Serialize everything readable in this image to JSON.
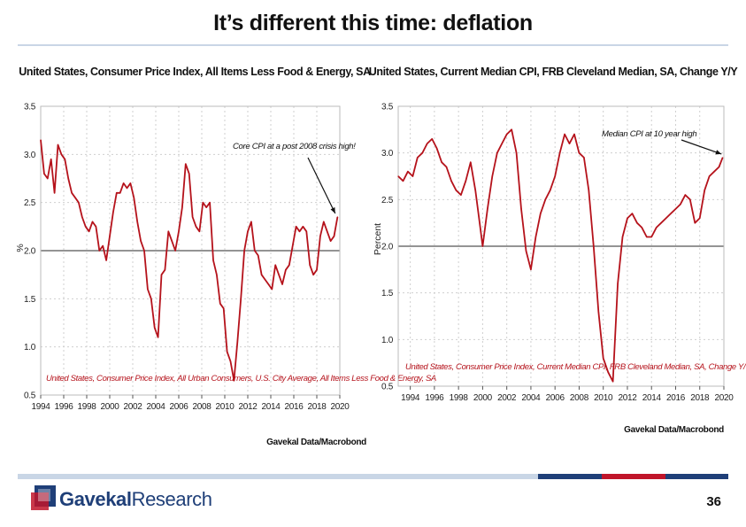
{
  "slide": {
    "title": "It’s different this time: deflation",
    "page_number": "36",
    "logo": {
      "brand_bold": "Gavekal",
      "brand_regular": "Research"
    },
    "colors": {
      "series": "#b5121b",
      "navy": "#1f3f78",
      "footer_red": "#c0152a",
      "footer_blue": "#1f3f78",
      "rule": "#c9d6e6"
    }
  },
  "chart_data": [
    {
      "type": "line",
      "title": "United States, Consumer Price Index, All Items Less Food & Energy, SA",
      "xlabel": "",
      "ylabel": "%",
      "xlim": [
        1994,
        2020
      ],
      "ylim": [
        0.5,
        3.5
      ],
      "xticks": [
        "1994",
        "1996",
        "1998",
        "2000",
        "2002",
        "2004",
        "2006",
        "2008",
        "2010",
        "2012",
        "2014",
        "2016",
        "2018",
        "2020"
      ],
      "yticks": [
        "0.5",
        "1.0",
        "1.5",
        "2.0",
        "2.5",
        "3.0",
        "3.5"
      ],
      "reference_line": 2.0,
      "annotation": {
        "text": "Core CPI at a post 2008 crisis high!",
        "target_x": 2019.6,
        "target_y": 2.35
      },
      "legend": "United States, Consumer Price Index, All Urban Consumers, U.S. City Average, All Items Less Food & Energy, SA",
      "source": "Gavekal Data/Macrobond",
      "series": [
        {
          "name": "United States, Consumer Price Index, All Urban Consumers, U.S. City Average, All Items Less Food & Energy, SA",
          "x": [
            1994.0,
            1994.3,
            1994.6,
            1994.9,
            1995.2,
            1995.5,
            1995.8,
            1996.1,
            1996.4,
            1996.7,
            1997.0,
            1997.3,
            1997.6,
            1997.9,
            1998.2,
            1998.5,
            1998.8,
            1999.1,
            1999.4,
            1999.7,
            2000.0,
            2000.3,
            2000.6,
            2000.9,
            2001.2,
            2001.5,
            2001.8,
            2002.1,
            2002.4,
            2002.7,
            2003.0,
            2003.3,
            2003.6,
            2003.9,
            2004.2,
            2004.5,
            2004.8,
            2005.1,
            2005.4,
            2005.7,
            2006.0,
            2006.3,
            2006.6,
            2006.9,
            2007.2,
            2007.5,
            2007.8,
            2008.1,
            2008.4,
            2008.7,
            2009.0,
            2009.3,
            2009.6,
            2009.9,
            2010.2,
            2010.5,
            2010.8,
            2011.1,
            2011.4,
            2011.7,
            2012.0,
            2012.3,
            2012.6,
            2012.9,
            2013.2,
            2013.5,
            2013.8,
            2014.1,
            2014.4,
            2014.7,
            2015.0,
            2015.3,
            2015.6,
            2015.9,
            2016.2,
            2016.5,
            2016.8,
            2017.1,
            2017.4,
            2017.7,
            2018.0,
            2018.3,
            2018.6,
            2018.9,
            2019.2,
            2019.5,
            2019.8
          ],
          "values": [
            3.15,
            2.8,
            2.75,
            2.95,
            2.6,
            3.1,
            3.0,
            2.95,
            2.75,
            2.6,
            2.55,
            2.5,
            2.35,
            2.25,
            2.2,
            2.3,
            2.25,
            2.0,
            2.05,
            1.9,
            2.15,
            2.4,
            2.6,
            2.6,
            2.7,
            2.65,
            2.7,
            2.55,
            2.3,
            2.1,
            2.0,
            1.6,
            1.5,
            1.2,
            1.1,
            1.75,
            1.8,
            2.2,
            2.1,
            2.0,
            2.2,
            2.45,
            2.9,
            2.8,
            2.35,
            2.25,
            2.2,
            2.5,
            2.45,
            2.5,
            1.9,
            1.75,
            1.45,
            1.4,
            0.95,
            0.85,
            0.65,
            1.05,
            1.5,
            2.0,
            2.2,
            2.3,
            2.0,
            1.95,
            1.75,
            1.7,
            1.65,
            1.6,
            1.85,
            1.75,
            1.65,
            1.8,
            1.85,
            2.05,
            2.25,
            2.2,
            2.25,
            2.2,
            1.85,
            1.75,
            1.8,
            2.15,
            2.3,
            2.2,
            2.1,
            2.15,
            2.35
          ]
        }
      ]
    },
    {
      "type": "line",
      "title": "United States, Current Median CPI, FRB Cleveland Median, SA, Change Y/Y",
      "xlabel": "",
      "ylabel": "Percent",
      "xlim": [
        1993,
        2020
      ],
      "ylim": [
        0.5,
        3.5
      ],
      "xticks": [
        "1994",
        "1996",
        "1998",
        "2000",
        "2002",
        "2004",
        "2006",
        "2008",
        "2010",
        "2012",
        "2014",
        "2016",
        "2018",
        "2020"
      ],
      "yticks": [
        "0.5",
        "1.0",
        "1.5",
        "2.0",
        "2.5",
        "3.0",
        "3.5"
      ],
      "reference_line": 2.0,
      "annotation": {
        "text": "Median CPI at 10 year high",
        "target_x": 2019.8,
        "target_y": 2.95
      },
      "legend": "United States, Consumer Price Index, Current Median CPI, FRB Cleveland Median, SA, Change Y/Y",
      "source": "Gavekal Data/Macrobond",
      "series": [
        {
          "name": "United States, Consumer Price Index, Current Median CPI, FRB Cleveland Median, SA, Change Y/Y",
          "x": [
            1993.0,
            1993.4,
            1993.8,
            1994.2,
            1994.6,
            1995.0,
            1995.4,
            1995.8,
            1996.2,
            1996.6,
            1997.0,
            1997.4,
            1997.8,
            1998.2,
            1998.6,
            1999.0,
            1999.4,
            1999.8,
            2000.0,
            2000.4,
            2000.8,
            2001.2,
            2001.6,
            2002.0,
            2002.4,
            2002.8,
            2003.2,
            2003.6,
            2004.0,
            2004.4,
            2004.8,
            2005.2,
            2005.6,
            2006.0,
            2006.4,
            2006.8,
            2007.2,
            2007.6,
            2008.0,
            2008.4,
            2008.8,
            2009.2,
            2009.6,
            2010.0,
            2010.4,
            2010.8,
            2011.2,
            2011.6,
            2012.0,
            2012.4,
            2012.8,
            2013.2,
            2013.6,
            2014.0,
            2014.4,
            2014.8,
            2015.2,
            2015.6,
            2016.0,
            2016.4,
            2016.8,
            2017.2,
            2017.6,
            2018.0,
            2018.4,
            2018.8,
            2019.2,
            2019.6,
            2019.9
          ],
          "values": [
            2.75,
            2.7,
            2.8,
            2.75,
            2.95,
            3.0,
            3.1,
            3.15,
            3.05,
            2.9,
            2.85,
            2.7,
            2.6,
            2.55,
            2.7,
            2.9,
            2.6,
            2.2,
            2.0,
            2.4,
            2.75,
            3.0,
            3.1,
            3.2,
            3.25,
            3.0,
            2.4,
            1.95,
            1.75,
            2.1,
            2.35,
            2.5,
            2.6,
            2.75,
            3.0,
            3.2,
            3.1,
            3.2,
            3.0,
            2.95,
            2.6,
            2.0,
            1.3,
            0.8,
            0.65,
            0.55,
            1.6,
            2.1,
            2.3,
            2.35,
            2.25,
            2.2,
            2.1,
            2.1,
            2.2,
            2.25,
            2.3,
            2.35,
            2.4,
            2.45,
            2.55,
            2.5,
            2.25,
            2.3,
            2.6,
            2.75,
            2.8,
            2.85,
            2.95
          ]
        }
      ]
    }
  ]
}
